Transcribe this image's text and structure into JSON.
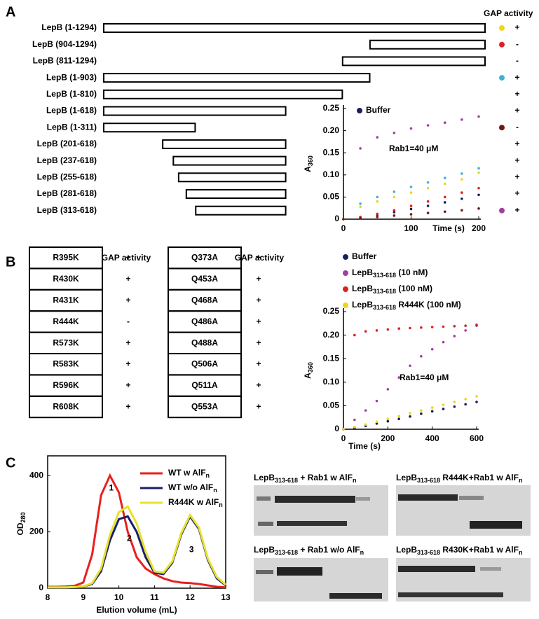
{
  "panel_a": {
    "label": "A",
    "header": "GAP activity",
    "constructs": [
      {
        "name": "LepB (1-1294)",
        "start": 1,
        "end": 1294,
        "color": "#f2d418",
        "activity": "+"
      },
      {
        "name": "LepB (904-1294)",
        "start": 904,
        "end": 1294,
        "color": "#e02020",
        "activity": "-"
      },
      {
        "name": "LepB (811-1294)",
        "start": 811,
        "end": 1294,
        "activity": "-"
      },
      {
        "name": "LepB (1-903)",
        "start": 1,
        "end": 903,
        "color": "#3cb4d2",
        "activity": "+"
      },
      {
        "name": "LepB (1-810)",
        "start": 1,
        "end": 810,
        "activity": "+"
      },
      {
        "name": "LepB (1-618)",
        "start": 1,
        "end": 618,
        "activity": "+"
      },
      {
        "name": "LepB (1-311)",
        "start": 1,
        "end": 311,
        "color": "#6b1a10",
        "activity": "-"
      },
      {
        "name": "LepB (201-618)",
        "start": 201,
        "end": 618,
        "activity": "+"
      },
      {
        "name": "LepB (237-618)",
        "start": 237,
        "end": 618,
        "activity": "+"
      },
      {
        "name": "LepB (255-618)",
        "start": 255,
        "end": 618,
        "activity": "+"
      },
      {
        "name": "LepB (281-618)",
        "start": 281,
        "end": 618,
        "activity": "+"
      },
      {
        "name": "LepB (313-618)",
        "start": 313,
        "end": 618,
        "color": "#a040a0",
        "activity": "+"
      }
    ]
  },
  "panel_b": {
    "label": "B",
    "headers": [
      "GAP activity",
      "GAP activity"
    ],
    "left_rows": [
      {
        "mutant": "R395K",
        "activity": "+"
      },
      {
        "mutant": "R430K",
        "activity": "+"
      },
      {
        "mutant": "R431K",
        "activity": "+"
      },
      {
        "mutant": "R444K",
        "activity": "-",
        "color": "#e8321e"
      },
      {
        "mutant": "R573K",
        "activity": "+"
      },
      {
        "mutant": "R583K",
        "activity": "+"
      },
      {
        "mutant": "R596K",
        "activity": "+"
      },
      {
        "mutant": "R608K",
        "activity": "+"
      }
    ],
    "right_rows": [
      {
        "mutant": "Q373A",
        "activity": "+"
      },
      {
        "mutant": "Q453A",
        "activity": "+"
      },
      {
        "mutant": "Q468A",
        "activity": "+"
      },
      {
        "mutant": "Q486A",
        "activity": "+"
      },
      {
        "mutant": "Q488A",
        "activity": "+"
      },
      {
        "mutant": "Q506A",
        "activity": "+"
      },
      {
        "mutant": "Q511A",
        "activity": "+"
      },
      {
        "mutant": "Q553A",
        "activity": "+"
      }
    ]
  },
  "panel_c": {
    "label": "C",
    "gels": [
      {
        "title": [
          "LepB",
          "313-618",
          " + Rab1 w AlF",
          "n"
        ]
      },
      {
        "title": [
          "LepB",
          "313-618",
          " R444K+Rab1 w AlF",
          "n"
        ]
      },
      {
        "title": [
          "LepB",
          "313-618",
          " + Rab1 w/o AlF",
          "n"
        ]
      },
      {
        "title": [
          "LepB",
          "313-618",
          " R430K+Rab1 w AlF",
          "n"
        ]
      }
    ]
  },
  "chart_data": [
    {
      "type": "scatter",
      "y_label": [
        "A",
        "360"
      ],
      "x_label": "Time (s)",
      "annotation": "Rab1=40 μM",
      "x": [
        0,
        25,
        50,
        75,
        100,
        125,
        150,
        175,
        200
      ],
      "xlim": [
        0,
        200
      ],
      "xticks": [
        0,
        100,
        200
      ],
      "ylim": [
        0,
        0.25
      ],
      "yticks": [
        0,
        0.05,
        {
          "value": 0.1,
          "label": "0.10"
        },
        0.15,
        {
          "value": 0.2,
          "label": "0.20"
        },
        0.25
      ],
      "series": [
        {
          "name": [
            "Buffer"
          ],
          "color": "#1a1f5a",
          "values": [
            0,
            0.004,
            0.01,
            0.016,
            0.023,
            0.03,
            0.038,
            0.046,
            0.055
          ]
        },
        {
          "color": "#a040a0",
          "values": [
            0,
            0.16,
            0.185,
            0.195,
            0.205,
            0.212,
            0.218,
            0.225,
            0.232
          ]
        },
        {
          "color": "#3cb4d2",
          "values": [
            0,
            0.035,
            0.05,
            0.062,
            0.073,
            0.083,
            0.093,
            0.103,
            0.115
          ]
        },
        {
          "color": "#f2d418",
          "values": [
            0,
            0.028,
            0.04,
            0.05,
            0.06,
            0.07,
            0.08,
            0.09,
            0.105
          ]
        },
        {
          "color": "#e02020",
          "values": [
            0,
            0.005,
            0.012,
            0.02,
            0.03,
            0.04,
            0.05,
            0.06,
            0.07
          ]
        },
        {
          "color": "#6b1a10",
          "values": [
            0,
            0.002,
            0.005,
            0.008,
            0.011,
            0.014,
            0.017,
            0.02,
            0.024
          ]
        }
      ]
    },
    {
      "type": "scatter",
      "y_label": [
        "A",
        "360"
      ],
      "x_label": "Time (s)",
      "annotation": "Rab1=40 μM",
      "x": [
        0,
        50,
        100,
        150,
        200,
        250,
        300,
        350,
        400,
        450,
        500,
        550,
        600
      ],
      "xlim": [
        0,
        600
      ],
      "xticks": [
        0,
        200,
        400,
        600
      ],
      "ylim": [
        0,
        0.25
      ],
      "yticks": [
        0,
        0.05,
        {
          "value": 0.1,
          "label": "0.10"
        },
        0.15,
        {
          "value": 0.2,
          "label": "0.20"
        },
        0.25
      ],
      "series": [
        {
          "name": [
            "Buffer"
          ],
          "color": "#1a1f5a",
          "values": [
            0,
            0.003,
            0.007,
            0.012,
            0.017,
            0.022,
            0.027,
            0.033,
            0.038,
            0.043,
            0.048,
            0.053,
            0.058
          ]
        },
        {
          "name": [
            "LepB",
            "313-618",
            " (10 nM)"
          ],
          "color": "#a040a0",
          "values": [
            0,
            0.02,
            0.04,
            0.06,
            0.085,
            0.11,
            0.135,
            0.155,
            0.17,
            0.185,
            0.198,
            0.21,
            0.22
          ]
        },
        {
          "name": [
            "LepB",
            "313-618",
            " (100 nM)"
          ],
          "color": "#e02020",
          "values": [
            0,
            0.2,
            0.208,
            0.21,
            0.212,
            0.214,
            0.215,
            0.216,
            0.217,
            0.218,
            0.219,
            0.22,
            0.222
          ]
        },
        {
          "name": [
            "LepB",
            "313-618",
            " R444K (100 nM)"
          ],
          "color": "#f2d418",
          "values": [
            0,
            0.005,
            0.01,
            0.016,
            0.022,
            0.028,
            0.034,
            0.04,
            0.046,
            0.052,
            0.058,
            0.064,
            0.07
          ]
        }
      ]
    },
    {
      "type": "line",
      "y_label": [
        "OD",
        "280"
      ],
      "x_label": "Elution volume (mL)",
      "peak_labels": [
        "1",
        "2",
        "3"
      ],
      "x": [
        8,
        8.25,
        8.5,
        8.75,
        9,
        9.25,
        9.5,
        9.75,
        10,
        10.25,
        10.5,
        10.75,
        11,
        11.25,
        11.5,
        11.75,
        12,
        12.25,
        12.5,
        12.75,
        13
      ],
      "xlim": [
        8,
        13
      ],
      "xticks": [
        8,
        9,
        10,
        11,
        12,
        13
      ],
      "ylim": [
        0,
        470
      ],
      "yticks": [
        0,
        200,
        400
      ],
      "series": [
        {
          "name": [
            "WT w AlF",
            "n"
          ],
          "color": "#e8201e",
          "values": [
            5,
            5,
            6,
            8,
            20,
            120,
            330,
            400,
            340,
            200,
            110,
            70,
            50,
            35,
            25,
            20,
            18,
            15,
            10,
            5,
            3
          ]
        },
        {
          "name": [
            "WT w/o AlF",
            "n"
          ],
          "color": "#1a1f6a",
          "values": [
            3,
            3,
            3,
            4,
            6,
            15,
            60,
            170,
            245,
            255,
            200,
            110,
            55,
            50,
            90,
            190,
            255,
            210,
            100,
            35,
            10
          ]
        },
        {
          "name": [
            "R444K w AlF",
            "n"
          ],
          "color": "#e8e030",
          "values": [
            3,
            3,
            3,
            4,
            6,
            18,
            70,
            190,
            270,
            290,
            230,
            130,
            60,
            55,
            95,
            195,
            260,
            215,
            105,
            40,
            12
          ]
        }
      ]
    }
  ]
}
